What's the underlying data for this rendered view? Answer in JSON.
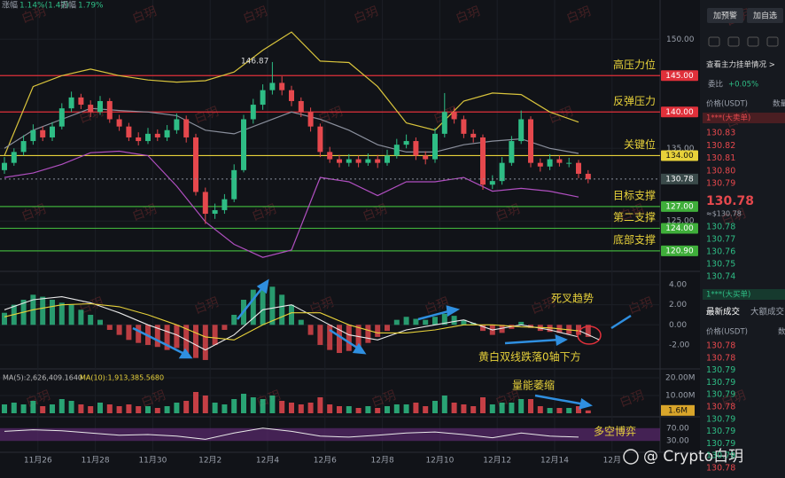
{
  "header": {
    "change_label": "涨幅",
    "change": "1.14%(1.47)",
    "amp_label": "振幅",
    "amp": "1.79%"
  },
  "watermark": "白玥",
  "footer": "@ Crypto白玥",
  "chart_data": {
    "type": "candlestick",
    "ylim": [
      118.2,
      155.4
    ],
    "yticks": [
      {
        "value": 150,
        "label": "150.00"
      },
      {
        "value": 135,
        "label": "135.00"
      },
      {
        "value": 125,
        "label": "125.00"
      }
    ],
    "x_labels": [
      "11月26",
      "11月28",
      "11月30",
      "12月2",
      "12月4",
      "12月6",
      "12月8",
      "12月10",
      "12月12",
      "12月14",
      "12月"
    ],
    "up_color": "#2ebd85",
    "down_color": "#e5484d",
    "candles": [
      [
        132,
        133.8,
        131.5,
        133
      ],
      [
        133,
        135,
        132.6,
        134.5
      ],
      [
        134.5,
        136.8,
        134,
        136
      ],
      [
        136,
        138.3,
        135.5,
        137.5
      ],
      [
        137.5,
        138,
        136,
        136.5
      ],
      [
        136.5,
        138.6,
        136,
        138
      ],
      [
        138,
        141.2,
        137.6,
        140.5
      ],
      [
        140.5,
        142.8,
        140,
        142
      ],
      [
        142,
        142.5,
        140.4,
        141
      ],
      [
        141,
        141.6,
        139.3,
        140
      ],
      [
        140,
        142.2,
        139.6,
        141.5
      ],
      [
        141.5,
        141.9,
        138.5,
        139
      ],
      [
        139,
        139.6,
        137.4,
        138
      ],
      [
        138,
        138.5,
        136,
        136.5
      ],
      [
        136.5,
        137.2,
        135.4,
        136
      ],
      [
        136,
        137.8,
        135.6,
        137
      ],
      [
        137,
        137.6,
        136,
        136.5
      ],
      [
        136.5,
        138.2,
        136,
        137.5
      ],
      [
        137.5,
        139.8,
        137,
        139
      ],
      [
        139,
        139.5,
        135.8,
        136.5
      ],
      [
        136.5,
        137,
        128.5,
        129
      ],
      [
        129,
        129.6,
        124.6,
        126
      ],
      [
        126,
        127.4,
        125.3,
        126.5
      ],
      [
        126.5,
        128.7,
        126,
        128
      ],
      [
        128,
        132.8,
        127.6,
        132
      ],
      [
        132,
        139.6,
        131.7,
        139
      ],
      [
        139,
        141.8,
        138.4,
        141
      ],
      [
        141,
        143.8,
        140.3,
        143
      ],
      [
        143,
        146.87,
        142.4,
        144
      ],
      [
        144,
        144.9,
        142.3,
        143
      ],
      [
        143,
        143.6,
        140.8,
        141.5
      ],
      [
        141.5,
        142,
        139.3,
        140
      ],
      [
        140,
        140.6,
        137.3,
        138
      ],
      [
        138,
        138.4,
        133.8,
        134.5
      ],
      [
        134.5,
        135.2,
        133,
        133.5
      ],
      [
        133.5,
        134.1,
        132.4,
        133
      ],
      [
        133,
        134.2,
        132.5,
        133.5
      ],
      [
        133.5,
        134,
        132.4,
        133
      ],
      [
        133,
        134.3,
        132.6,
        133.5
      ],
      [
        133.5,
        134.1,
        132.3,
        133
      ],
      [
        133,
        134.8,
        132.6,
        134
      ],
      [
        134,
        136.3,
        133.6,
        135.5
      ],
      [
        135.5,
        136.9,
        135,
        136
      ],
      [
        136,
        136.5,
        133.4,
        134
      ],
      [
        134,
        134.6,
        132.8,
        133.5
      ],
      [
        133.5,
        137.8,
        133,
        137
      ],
      [
        137,
        142.6,
        136.5,
        140
      ],
      [
        140,
        140.6,
        138.4,
        139
      ],
      [
        139,
        139.5,
        136.4,
        137
      ],
      [
        137,
        137.6,
        135.8,
        136.5
      ],
      [
        136.5,
        136.9,
        129.3,
        130
      ],
      [
        130,
        131.3,
        129.4,
        130.5
      ],
      [
        130.5,
        133.8,
        130,
        133
      ],
      [
        133,
        136.7,
        132.6,
        136
      ],
      [
        136,
        140.2,
        135.6,
        139
      ],
      [
        139,
        139.4,
        132.4,
        133
      ],
      [
        133,
        133.6,
        131.8,
        132.5
      ],
      [
        132.5,
        134.2,
        132,
        133.5
      ],
      [
        133.5,
        134,
        132.5,
        133
      ],
      [
        133,
        133.7,
        132.4,
        133
      ],
      [
        133,
        133.4,
        130.9,
        131.5
      ],
      [
        131.5,
        132,
        130.2,
        130.78
      ]
    ],
    "high_label": 146.87,
    "last_price": 130.78,
    "bands": {
      "index": [
        0,
        3,
        6,
        9,
        12,
        15,
        18,
        21,
        24,
        27,
        30,
        33,
        36,
        39,
        42,
        45,
        48,
        51,
        54,
        57,
        60
      ],
      "upper": [
        134,
        143.5,
        145,
        145.9,
        145,
        144.4,
        144.1,
        144.3,
        145.5,
        148.5,
        151,
        147,
        146.8,
        143.5,
        138.5,
        137.5,
        141.5,
        142.6,
        142.4,
        140,
        138.6
      ],
      "middle": [
        135,
        137.5,
        139,
        140.5,
        140.2,
        140,
        139.5,
        137.5,
        137,
        138.5,
        140,
        139,
        137.5,
        135.5,
        134.5,
        134.5,
        135.5,
        136,
        136.3,
        135,
        134.3
      ],
      "lower": [
        131,
        131.6,
        132.8,
        134.4,
        134.6,
        134,
        129.8,
        124.9,
        121.8,
        120,
        121,
        131,
        130.4,
        128.5,
        130.4,
        130.4,
        131,
        129.1,
        129.5,
        129.1,
        128.3
      ],
      "colors": [
        "#d9c43c",
        "#8a8f9c",
        "#b04fc0"
      ]
    },
    "levels": [
      {
        "value": 145,
        "label": "145.00",
        "name": "高压力位",
        "color": "#e0303a"
      },
      {
        "value": 140,
        "label": "140.00",
        "name": "反弹压力",
        "color": "#e0303a"
      },
      {
        "value": 134,
        "label": "134.00",
        "name": "关键位",
        "color": "#e8d23a"
      },
      {
        "value": 127,
        "label": "127.00",
        "name": "目标支撑",
        "color": "#3fae3a"
      },
      {
        "value": 124,
        "label": "124.00",
        "name": "第二支撑",
        "color": "#3fae3a"
      },
      {
        "value": 120.9,
        "label": "120.90",
        "name": "底部支撑",
        "color": "#3fae3a"
      }
    ],
    "macd": {
      "ylim": [
        -4.3,
        5.15
      ],
      "yticks": [
        {
          "value": 4,
          "label": "4.00"
        },
        {
          "value": 2,
          "label": "2.00"
        },
        {
          "value": 0,
          "label": "0.00"
        },
        {
          "value": -2,
          "label": "-2.00"
        }
      ],
      "hist": [
        1.2,
        2,
        2.5,
        3,
        2.8,
        2.5,
        2.2,
        2,
        1.5,
        1,
        0.5,
        -0.5,
        -1,
        -1.5,
        -1.8,
        -2,
        -2.2,
        -2.5,
        -2.3,
        -2.8,
        -3.3,
        -3.5,
        -2,
        -0.5,
        1,
        2.5,
        3.5,
        4,
        3.8,
        3,
        2,
        0.5,
        -1,
        -2,
        -2.5,
        -2.8,
        -2.6,
        -2.2,
        -1.8,
        -1.2,
        -0.6,
        0.5,
        0.8,
        0.6,
        0.5,
        0.8,
        1.1,
        0.9,
        0.5,
        0.2,
        -0.6,
        -1,
        -0.8,
        -0.4,
        0.3,
        -0.3,
        -0.6,
        -0.7,
        -0.8,
        -0.9,
        -1,
        -1.2
      ],
      "dif": [
        1.5,
        2.5,
        2.8,
        2.2,
        1.2,
        0,
        -1,
        -2.5,
        -1,
        1.5,
        2,
        0.5,
        -1,
        -1.5,
        -0.5,
        0,
        0.5,
        -0.5,
        0,
        -0.5,
        -1.2
      ],
      "dea": [
        0.8,
        1.5,
        2,
        2.1,
        1.8,
        1,
        0,
        -1.2,
        -1.5,
        0,
        1.2,
        1.2,
        0,
        -0.8,
        -0.8,
        -0.5,
        0,
        0,
        -0.2,
        -0.3,
        -0.6
      ]
    },
    "volume": {
      "ylim": [
        0,
        24
      ],
      "yticks": [
        {
          "value": 20,
          "label": "20.00M"
        },
        {
          "value": 10,
          "label": "10.00M"
        }
      ],
      "values": [
        5,
        6,
        5,
        7,
        4,
        5,
        8,
        7,
        5,
        4,
        6,
        5,
        4,
        5,
        4,
        4,
        3,
        4,
        6,
        7,
        12,
        10,
        6,
        5,
        8,
        11,
        9,
        8,
        10,
        7,
        6,
        5,
        6,
        9,
        5,
        4,
        4,
        3,
        4,
        3,
        4,
        5,
        5,
        6,
        4,
        7,
        10,
        6,
        5,
        4,
        9,
        5,
        6,
        6,
        8,
        8,
        4,
        3,
        3,
        3,
        4,
        1.6
      ],
      "tag": {
        "value": 1.6,
        "label": "1.6M"
      },
      "ma5": "MA(5):2,626,409.1640",
      "ma10": "MA(10):1,913,385.5680"
    },
    "rsi": {
      "ylim": [
        0,
        100
      ],
      "yticks": [
        {
          "value": 70,
          "label": "70.00"
        },
        {
          "value": 30,
          "label": "30.00"
        }
      ],
      "values": [
        60,
        65,
        62,
        55,
        48,
        50,
        45,
        35,
        55,
        70,
        60,
        45,
        42,
        48,
        55,
        58,
        50,
        40,
        55,
        45,
        42
      ]
    },
    "annotations": {
      "death_cross": "死叉趋势",
      "below_zero": "黄白双线跌落0轴下方",
      "volume_shrink": "量能萎缩",
      "tug": "多空博弈"
    }
  },
  "sidebar": {
    "buttons": [
      "加预警",
      "加自选"
    ],
    "depth_link": "查看主力挂单情况 >",
    "ratio_label": "委比",
    "ratio": "+0.05%",
    "col_price": "价格(USDT)",
    "col_qty": "数量",
    "big_sell": "1***(大卖单)",
    "asks": [
      "130.83",
      "130.82",
      "130.81",
      "130.80",
      "130.79"
    ],
    "last": "130.78",
    "last_usd": "≈$130.78",
    "bids": [
      "130.78",
      "130.77",
      "130.76",
      "130.75",
      "130.74"
    ],
    "big_buy": "1***(大买单)",
    "tabs": [
      "最新成交",
      "大额成交"
    ],
    "trade_cols": [
      "价格(USDT)",
      "数"
    ],
    "trades": [
      {
        "price": "130.78",
        "side": "sell"
      },
      {
        "price": "130.78",
        "side": "sell"
      },
      {
        "price": "130.79",
        "side": "buy"
      },
      {
        "price": "130.79",
        "side": "buy"
      },
      {
        "price": "130.79",
        "side": "buy"
      },
      {
        "price": "130.78",
        "side": "sell"
      },
      {
        "price": "130.79",
        "side": "buy"
      },
      {
        "price": "130.79",
        "side": "buy"
      },
      {
        "price": "130.79",
        "side": "buy"
      },
      {
        "price": "130.79",
        "side": "buy"
      },
      {
        "price": "130.78",
        "side": "sell"
      }
    ]
  }
}
